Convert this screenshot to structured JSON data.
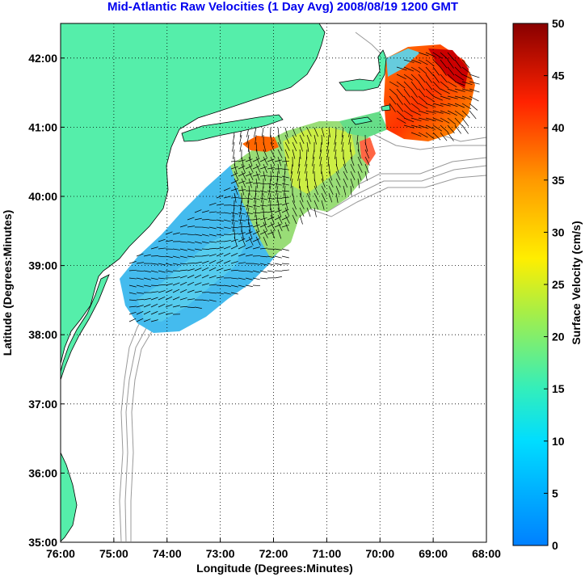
{
  "title": "Mid-Atlantic Raw Velocities (1 Day Avg) 2008/08/19 1200 GMT",
  "map": {
    "xlabel": "Longitude (Degrees:Minutes)",
    "ylabel": "Latitude (Degrees:Minutes)",
    "lon_ticks": [
      {
        "value": -76,
        "label": "76:00"
      },
      {
        "value": -75,
        "label": "75:00"
      },
      {
        "value": -74,
        "label": "74:00"
      },
      {
        "value": -73,
        "label": "73:00"
      },
      {
        "value": -72,
        "label": "72:00"
      },
      {
        "value": -71,
        "label": "71:00"
      },
      {
        "value": -70,
        "label": "70:00"
      },
      {
        "value": -69,
        "label": "69:00"
      },
      {
        "value": -68,
        "label": "68:00"
      }
    ],
    "lat_ticks": [
      {
        "value": 35,
        "label": "35:00"
      },
      {
        "value": 36,
        "label": "36:00"
      },
      {
        "value": 37,
        "label": "37:00"
      },
      {
        "value": 38,
        "label": "38:00"
      },
      {
        "value": 39,
        "label": "39:00"
      },
      {
        "value": 40,
        "label": "40:00"
      },
      {
        "value": 41,
        "label": "41:00"
      },
      {
        "value": 42,
        "label": "42:00"
      }
    ],
    "lon_range": [
      -76,
      -68
    ],
    "lat_range": [
      35,
      42.5
    ],
    "grid": "dotted",
    "land_color": "#55eeaa",
    "bathymetry_color": "#999999"
  },
  "colorbar": {
    "label": "Surface Velocity (cm/s)",
    "range": [
      0,
      50
    ],
    "ticks": [
      {
        "value": 0,
        "label": "0"
      },
      {
        "value": 5,
        "label": "5"
      },
      {
        "value": 10,
        "label": "10"
      },
      {
        "value": 15,
        "label": "15"
      },
      {
        "value": 20,
        "label": "20"
      },
      {
        "value": 25,
        "label": "25"
      },
      {
        "value": 30,
        "label": "30"
      },
      {
        "value": 35,
        "label": "35"
      },
      {
        "value": 40,
        "label": "40"
      },
      {
        "value": 45,
        "label": "45"
      },
      {
        "value": 50,
        "label": "50"
      }
    ],
    "colormap": "jet"
  }
}
